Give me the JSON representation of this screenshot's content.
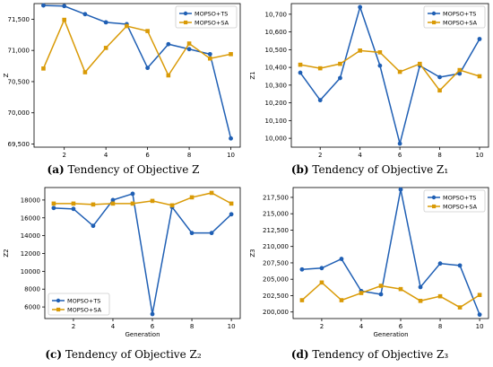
{
  "colors": {
    "ts": "#1f5fb4",
    "sa": "#d99a06"
  },
  "chart_data": [
    {
      "type": "line",
      "caption_tag": "(a)",
      "caption_text": "Tendency of Objective Z",
      "xlabel": "",
      "ylabel": "Z",
      "x": [
        1,
        2,
        3,
        4,
        5,
        6,
        7,
        8,
        9,
        10
      ],
      "xticks": [
        2,
        4,
        6,
        8,
        10
      ],
      "xtick_labels": [
        "2",
        "4",
        "6",
        "8",
        "10"
      ],
      "ylim": [
        69450,
        71750
      ],
      "yticks": [
        69500,
        70000,
        70500,
        71000,
        71500
      ],
      "ytick_labels": [
        "69,500",
        "70,000",
        "70,500",
        "71,000",
        "71,500"
      ],
      "legend_position": "top-right",
      "series": [
        {
          "name": "MOPSO+TS",
          "color": "#1f5fb4",
          "marker": "circle",
          "values": [
            71720,
            71710,
            71580,
            71450,
            71420,
            70720,
            71100,
            71020,
            70940,
            69590
          ]
        },
        {
          "name": "MOPSO+SA",
          "color": "#d99a06",
          "marker": "square",
          "values": [
            70710,
            71490,
            70650,
            71040,
            71390,
            71310,
            70600,
            71110,
            70870,
            70940
          ]
        }
      ]
    },
    {
      "type": "line",
      "caption_tag": "(b)",
      "caption_text": "Tendency of Objective Z₁",
      "xlabel": "Generation",
      "ylabel": "Z1",
      "x": [
        1,
        2,
        3,
        4,
        5,
        6,
        7,
        8,
        9,
        10
      ],
      "xticks": [
        2,
        4,
        6,
        8,
        10
      ],
      "xtick_labels": [
        "2",
        "4",
        "6",
        "8",
        "10"
      ],
      "ylim": [
        9950,
        10760
      ],
      "yticks": [
        10000,
        10100,
        10200,
        10300,
        10400,
        10500,
        10600,
        10700
      ],
      "ytick_labels": [
        "10,000",
        "10,100",
        "10,200",
        "10,300",
        "10,400",
        "10,500",
        "10,600",
        "10,700"
      ],
      "legend_position": "top-right",
      "series": [
        {
          "name": "MOPSO+TS",
          "color": "#1f5fb4",
          "marker": "circle",
          "values": [
            10370,
            10215,
            10340,
            10740,
            10410,
            9970,
            10410,
            10345,
            10365,
            10560
          ]
        },
        {
          "name": "MOPSO+SA",
          "color": "#d99a06",
          "marker": "square",
          "values": [
            10415,
            10395,
            10420,
            10495,
            10485,
            10375,
            10420,
            10270,
            10385,
            10350
          ]
        }
      ]
    },
    {
      "type": "line",
      "caption_tag": "(c)",
      "caption_text": "Tendency of Objective Z₂",
      "xlabel": "Generation",
      "ylabel": "Z2",
      "x": [
        1,
        2,
        3,
        4,
        5,
        6,
        7,
        8,
        9,
        10
      ],
      "xticks": [
        2,
        4,
        6,
        8,
        10
      ],
      "xtick_labels": [
        "2",
        "4",
        "6",
        "8",
        "10"
      ],
      "ylim": [
        4700,
        19400
      ],
      "yticks": [
        6000,
        8000,
        10000,
        12000,
        14000,
        16000,
        18000
      ],
      "ytick_labels": [
        "6000",
        "8000",
        "10000",
        "12000",
        "14000",
        "16000",
        "18000"
      ],
      "legend_position": "bottom-left",
      "series": [
        {
          "name": "MOPSO+TS",
          "color": "#1f5fb4",
          "marker": "circle",
          "values": [
            17100,
            17000,
            15100,
            18000,
            18700,
            5200,
            17200,
            14300,
            14300,
            16400
          ]
        },
        {
          "name": "MOPSO+SA",
          "color": "#d99a06",
          "marker": "square",
          "values": [
            17600,
            17600,
            17500,
            17600,
            17600,
            17900,
            17400,
            18300,
            18800,
            17600
          ]
        }
      ]
    },
    {
      "type": "line",
      "caption_tag": "(d)",
      "caption_text": "Tendency of Objective Z₃",
      "xlabel": "Generation",
      "ylabel": "Z3",
      "x": [
        1,
        2,
        3,
        4,
        5,
        6,
        7,
        8,
        9,
        10
      ],
      "xticks": [
        2,
        4,
        6,
        8,
        10
      ],
      "xtick_labels": [
        "2",
        "4",
        "6",
        "8",
        "10"
      ],
      "ylim": [
        199000,
        219000
      ],
      "yticks": [
        200000,
        202500,
        205000,
        207500,
        210000,
        212500,
        215000,
        217500
      ],
      "ytick_labels": [
        "200,000",
        "202,500",
        "205,000",
        "207,500",
        "210,000",
        "212,500",
        "215,000",
        "217,500"
      ],
      "legend_position": "top-right",
      "series": [
        {
          "name": "MOPSO+TS",
          "color": "#1f5fb4",
          "marker": "circle",
          "values": [
            206500,
            206700,
            208100,
            203200,
            202700,
            218700,
            203800,
            207400,
            207100,
            199600
          ]
        },
        {
          "name": "MOPSO+SA",
          "color": "#d99a06",
          "marker": "square",
          "values": [
            201800,
            204500,
            201800,
            202900,
            204000,
            203500,
            201700,
            202400,
            200700,
            202600
          ]
        }
      ]
    }
  ]
}
